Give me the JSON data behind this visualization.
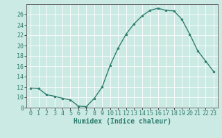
{
  "x": [
    0,
    1,
    2,
    3,
    4,
    5,
    6,
    7,
    8,
    9,
    10,
    11,
    12,
    13,
    14,
    15,
    16,
    17,
    18,
    19,
    20,
    21,
    22,
    23
  ],
  "y": [
    11.8,
    11.7,
    10.5,
    10.2,
    9.8,
    9.5,
    8.3,
    8.2,
    9.8,
    12.0,
    16.2,
    19.5,
    22.2,
    24.2,
    25.7,
    26.8,
    27.2,
    26.8,
    26.7,
    25.1,
    22.2,
    19.0,
    17.0,
    15.0
  ],
  "line_color": "#2e7d6e",
  "marker": "o",
  "marker_size": 2.0,
  "bg_color": "#cceae4",
  "grid_color": "#ffffff",
  "xlabel": "Humidex (Indice chaleur)",
  "ylim": [
    8,
    28
  ],
  "xlim": [
    -0.5,
    23.5
  ],
  "yticks": [
    8,
    10,
    12,
    14,
    16,
    18,
    20,
    22,
    24,
    26
  ],
  "xticks": [
    0,
    1,
    2,
    3,
    4,
    5,
    6,
    7,
    8,
    9,
    10,
    11,
    12,
    13,
    14,
    15,
    16,
    17,
    18,
    19,
    20,
    21,
    22,
    23
  ],
  "tick_fontsize": 6,
  "xlabel_fontsize": 7,
  "linewidth": 1.0,
  "spine_color": "#555555"
}
